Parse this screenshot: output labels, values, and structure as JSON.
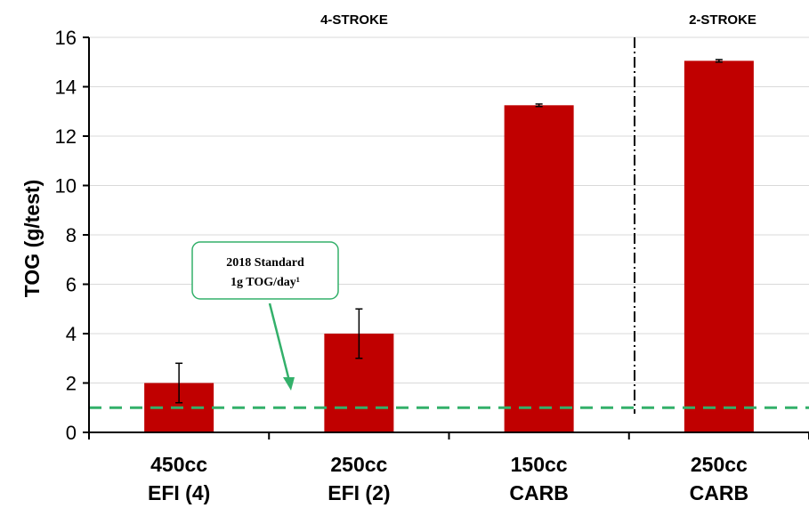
{
  "chart_data": {
    "type": "bar",
    "ylabel": "TOG (g/test)",
    "xlabel": "",
    "ylim": [
      0,
      16
    ],
    "yticks": [
      0,
      2,
      4,
      6,
      8,
      10,
      12,
      14,
      16
    ],
    "grid": true,
    "categories": [
      {
        "line1": "450cc",
        "line2": "EFI (4)"
      },
      {
        "line1": "250cc",
        "line2": "EFI (2)"
      },
      {
        "line1": "150cc",
        "line2": "CARB"
      },
      {
        "line1": "250cc",
        "line2": "CARB"
      }
    ],
    "values": [
      2.0,
      4.0,
      13.25,
      15.05
    ],
    "error_low": [
      0.8,
      1.0,
      0.05,
      0.05
    ],
    "error_high": [
      0.8,
      1.0,
      0.05,
      0.05
    ],
    "bar_color": "#c00000",
    "sections": [
      {
        "label": "4-STROKE"
      },
      {
        "label": "2-STROKE"
      }
    ],
    "reference_line": {
      "value": 1,
      "color": "#33b06a"
    },
    "annotation": {
      "line1": "2018 Standard",
      "line2": "1g TOG/day¹",
      "color": "#33b06a"
    }
  }
}
